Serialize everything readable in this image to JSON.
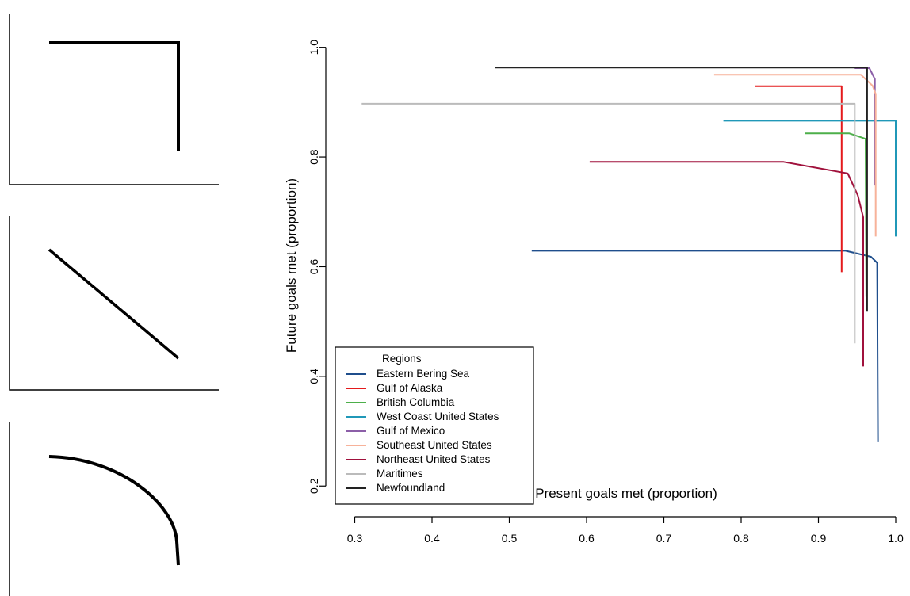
{
  "chart_data": [
    {
      "type": "line",
      "title": "",
      "xlabel": "",
      "ylabel": "",
      "series": [
        {
          "x": [
            0.0,
            0.0,
            0.62
          ],
          "y": [
            0.9,
            0.0,
            0.0
          ]
        }
      ],
      "xlim": [
        0,
        1
      ],
      "ylim": [
        0,
        1
      ]
    },
    {
      "type": "line",
      "title": "",
      "xlabel": "",
      "ylabel": "",
      "series": [
        {
          "x": [
            0.0,
            0.62
          ],
          "y": [
            0.88,
            0.0
          ]
        }
      ],
      "xlim": [
        0,
        1
      ],
      "ylim": [
        0,
        1
      ]
    },
    {
      "type": "line",
      "title": "",
      "xlabel": "",
      "ylabel": "",
      "series": [
        {
          "x": [
            0.0,
            0.2,
            0.4,
            0.55,
            0.62,
            0.62
          ],
          "y": [
            0.95,
            0.9,
            0.72,
            0.4,
            0.1,
            0.0
          ]
        }
      ],
      "xlim": [
        0,
        1
      ],
      "ylim": [
        0,
        1
      ]
    },
    {
      "type": "line",
      "title": "",
      "xlabel": "Present goals met (proportion)",
      "ylabel": "Future goals met (proportion)",
      "xlim": [
        0.28,
        1.0
      ],
      "ylim": [
        0.17,
        1.04
      ],
      "xticks": [
        0.3,
        0.4,
        0.5,
        0.6,
        0.7,
        0.8,
        0.9,
        1.0
      ],
      "xtick_labels": [
        "0.3",
        "0.4",
        "0.5",
        "0.6",
        "0.7",
        "0.8",
        "0.9",
        "1.0"
      ],
      "yticks": [
        0.2,
        0.4,
        0.6,
        0.8,
        1.0
      ],
      "ytick_labels": [
        "0.2",
        "0.4",
        "0.6",
        "0.8",
        "1.0"
      ],
      "grid": false,
      "legend": {
        "title": "Regions",
        "position": "bottom-left"
      },
      "series": [
        {
          "name": "Eastern Bering Sea",
          "color": "#1f4e8c",
          "x": [
            0.529,
            0.935,
            0.968,
            0.976,
            0.977
          ],
          "y": [
            0.629,
            0.629,
            0.618,
            0.607,
            0.28
          ]
        },
        {
          "name": "Gulf of Alaska",
          "color": "#e41a1c",
          "x": [
            0.818,
            0.93,
            0.93
          ],
          "y": [
            0.929,
            0.929,
            0.59
          ]
        },
        {
          "name": "British Columbia",
          "color": "#4daf4a",
          "x": [
            0.882,
            0.94,
            0.961,
            0.962
          ],
          "y": [
            0.843,
            0.843,
            0.833,
            0.545
          ]
        },
        {
          "name": "West Coast United States",
          "color": "#2098b8",
          "x": [
            0.777,
            1.0,
            1.0
          ],
          "y": [
            0.866,
            0.866,
            0.655
          ]
        },
        {
          "name": "Gulf of Mexico",
          "color": "#8c5fa8",
          "x": [
            0.946,
            0.966,
            0.973,
            0.973
          ],
          "y": [
            0.962,
            0.962,
            0.942,
            0.748
          ]
        },
        {
          "name": "Southeast United States",
          "color": "#f7b29a",
          "x": [
            0.765,
            0.955,
            0.97,
            0.974,
            0.974
          ],
          "y": [
            0.95,
            0.95,
            0.93,
            0.915,
            0.655
          ]
        },
        {
          "name": "Northeast United States",
          "color": "#a0113c",
          "x": [
            0.604,
            0.855,
            0.938,
            0.951,
            0.958,
            0.958
          ],
          "y": [
            0.791,
            0.791,
            0.77,
            0.73,
            0.69,
            0.418
          ]
        },
        {
          "name": "Maritimes",
          "color": "#bbbbbb",
          "x": [
            0.309,
            0.947,
            0.947
          ],
          "y": [
            0.897,
            0.897,
            0.46
          ]
        },
        {
          "name": "Newfoundland",
          "color": "#222222",
          "x": [
            0.482,
            0.962,
            0.963,
            0.963
          ],
          "y": [
            0.963,
            0.963,
            0.963,
            0.518
          ]
        }
      ]
    }
  ]
}
